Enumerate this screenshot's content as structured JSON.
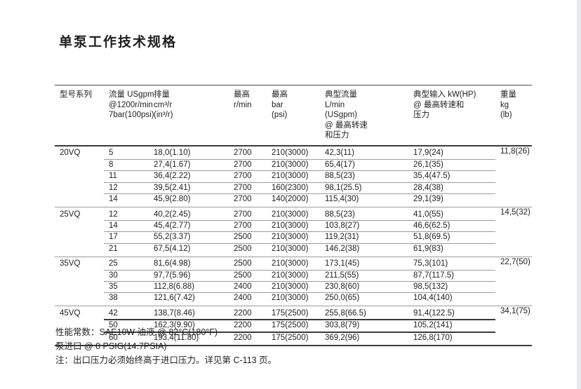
{
  "page": {
    "title": "单泵工作技术规格"
  },
  "table": {
    "columns": [
      {
        "id": "model",
        "lines": [
          "型号系列"
        ]
      },
      {
        "id": "flow",
        "lines": [
          "流量 USgpm",
          "@1200r/min",
          "7bar(100psi)"
        ]
      },
      {
        "id": "displacement",
        "lines": [
          "排量",
          "cm³/r",
          "(in³/r)"
        ]
      },
      {
        "id": "max-speed",
        "lines": [
          "最高",
          "r/min"
        ]
      },
      {
        "id": "max-pressure",
        "lines": [
          "最高",
          "bar",
          "(psi)"
        ]
      },
      {
        "id": "typical-flow",
        "lines": [
          "典型流量",
          "L/min",
          "(USgpm)",
          "@ 最高转速",
          "和压力"
        ]
      },
      {
        "id": "typical-input",
        "lines": [
          "典型输入 kW(HP)",
          "@ 最高转速和",
          "压力"
        ]
      },
      {
        "id": "weight",
        "lines": [
          "重量",
          "kg",
          "(lb)"
        ]
      }
    ],
    "sections": [
      {
        "model": "20VQ",
        "weight": "11,8(26)",
        "rows": [
          [
            "5",
            "18,0(1.10)",
            "2700",
            "210(3000)",
            "42,3(11)",
            "17,9(24)"
          ],
          [
            "8",
            "27,4(1.67)",
            "2700",
            "210(3000)",
            "65,4(17)",
            "26,1(35)"
          ],
          [
            "11",
            "36,4(2.22)",
            "2700",
            "210(3000)",
            "88,5(23)",
            "35,4(47.5)"
          ],
          [
            "12",
            "39,5(2.41)",
            "2700",
            "160(2300)",
            "98,1(25.5)",
            "28,4(38)"
          ],
          [
            "14",
            "45,9(2.80)",
            "2700",
            "140(2000)",
            "115,4(30)",
            "29,1(39)"
          ]
        ]
      },
      {
        "model": "25VQ",
        "weight": "14,5(32)",
        "rows": [
          [
            "12",
            "40,2(2.45)",
            "2700",
            "210(3000)",
            "88,5(23)",
            "41,0(55)"
          ],
          [
            "14",
            "45,4(2.77)",
            "2700",
            "210(3000)",
            "103,8(27)",
            "46,6(62.5)"
          ],
          [
            "17",
            "55,2(3.37)",
            "2500",
            "210(3000)",
            "119,2(31)",
            "51,8(69.5)"
          ],
          [
            "21",
            "67,5(4.12)",
            "2500",
            "210(3000)",
            "146,2(38)",
            "61,9(83)"
          ]
        ]
      },
      {
        "model": "35VQ",
        "weight": "22,7(50)",
        "rows": [
          [
            "25",
            "81,6(4.98)",
            "2500",
            "210(3000)",
            "173,1(45)",
            "75,3(101)"
          ],
          [
            "30",
            "97,7(5.96)",
            "2500",
            "210(3000)",
            "211,5(55)",
            "87,7(117.5)"
          ],
          [
            "35",
            "112,8(6.88)",
            "2400",
            "210(3000)",
            "230,8(60)",
            "98,5(132)"
          ],
          [
            "38",
            "121,6(7.42)",
            "2400",
            "210(3000)",
            "250,0(65)",
            "104,4(140)"
          ]
        ]
      },
      {
        "model": "45VQ",
        "weight": "34,1(75)",
        "rows": [
          [
            "42",
            "138,7(8.46)",
            "2200",
            "175(2500)",
            "255,8(66.5)",
            "91,4(122.5)"
          ],
          [
            "50",
            "162,3(9.90)",
            "2200",
            "175(2500)",
            "303,8(79)",
            "105,2(141)"
          ],
          [
            "60",
            "193,4(11.80)",
            "2200",
            "175(2500)",
            "369,2(96)",
            "126,8(170)"
          ]
        ]
      }
    ]
  },
  "notes": [
    "性能常数：SAE10W 油液 @ 82°C(180°F)",
    "泵进口 @ 0 PSIG(14.7PSIA)",
    "注：出口压力必须始终高于进口压力。详见第 C-113 页。"
  ],
  "colors": {
    "page_background": "#ffffff",
    "text": "#222222",
    "rule_dark": "#3a3a3a",
    "rule_gray": "#9b9b9b",
    "right_edge": "#e7eaea"
  }
}
